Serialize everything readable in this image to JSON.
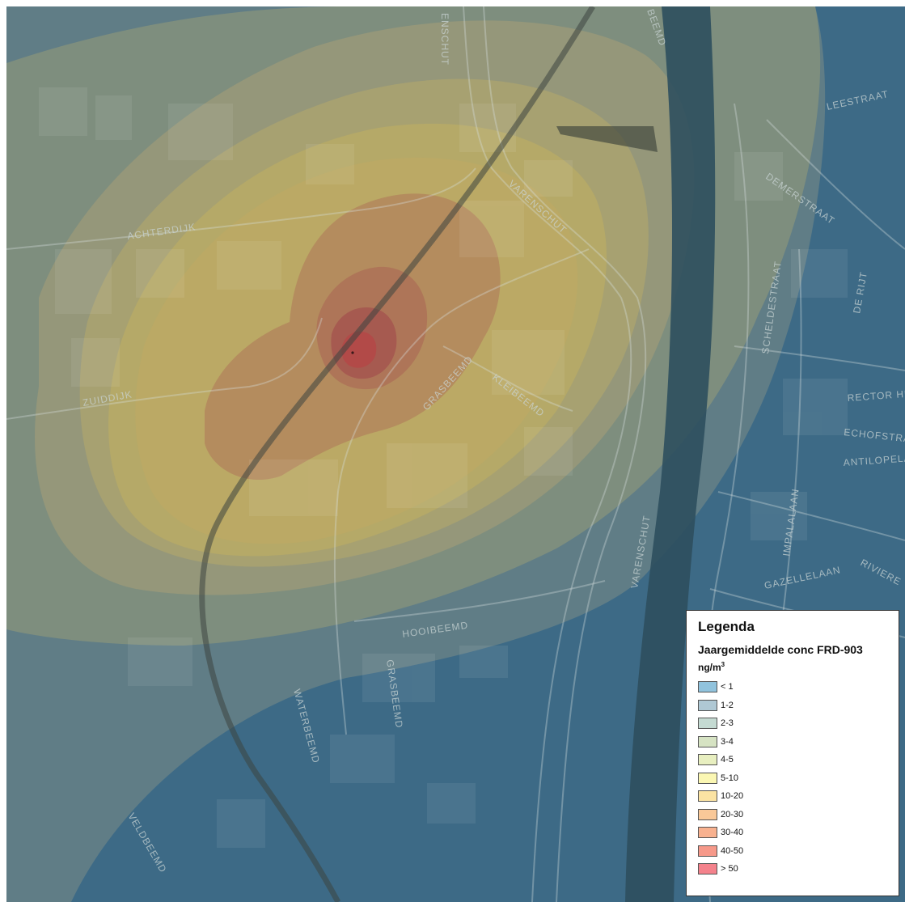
{
  "streets": [
    "ACHTERDIJK",
    "ZUIDDIJK",
    "VARENSCHUT",
    "VARENSCHUT",
    "GRASBEEMD",
    "KLEIBEEMD",
    "HOOIBEEMD",
    "GRASBEEMD",
    "WATERBEEMD",
    "VELDBEEMD",
    "DEMERSTRAAT",
    "SCHELDESTRAAT",
    "DE RIJT",
    "RECTOR HE",
    "ECHOFSTRAA",
    "ANTILOPELA",
    "IMPALALAAN",
    "GAZELLELAAN",
    "RIVIERE",
    "LEESTRAAT",
    "ENSCHUT",
    "BEEMD"
  ],
  "legend": {
    "title": "Legenda",
    "subtitle": "Jaargemiddelde conc FRD-903",
    "unit": "ng/m",
    "unit_sup": "3",
    "classes": [
      {
        "label": "< 1",
        "color": "#91c3dd"
      },
      {
        "label": "1-2",
        "color": "#afc8d4"
      },
      {
        "label": "2-3",
        "color": "#c4dad2"
      },
      {
        "label": "3-4",
        "color": "#d6e3c3"
      },
      {
        "label": "4-5",
        "color": "#e8efc0"
      },
      {
        "label": "5-10",
        "color": "#fbf7b3"
      },
      {
        "label": "10-20",
        "color": "#fbe3a3"
      },
      {
        "label": "20-30",
        "color": "#f9c898"
      },
      {
        "label": "30-40",
        "color": "#f8b18f"
      },
      {
        "label": "40-50",
        "color": "#f6998a"
      },
      {
        "label": "> 50",
        "color": "#f4828c"
      }
    ]
  }
}
